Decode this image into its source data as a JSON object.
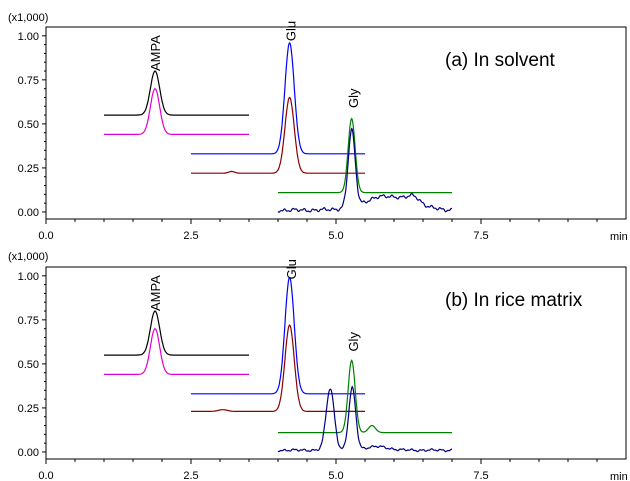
{
  "chart_data": [
    {
      "type": "line",
      "title": "(a) In solvent",
      "multiplier": "(x1,000)",
      "xunit": "min",
      "xlim": [
        0,
        10
      ],
      "ylim": [
        -0.04,
        1.05
      ],
      "xticks": [
        0.0,
        2.5,
        5.0,
        7.5
      ],
      "xtick_labels": [
        "0.0",
        "2.5",
        "5.0",
        "7.5"
      ],
      "yticks": [
        0.0,
        0.25,
        0.5,
        0.75,
        1.0
      ],
      "ytick_labels": [
        "0.00",
        "0.25",
        "0.50",
        "0.75",
        "1.00"
      ],
      "peak_labels": [
        {
          "text": "AMPA",
          "x": 1.88,
          "y": 0.8
        },
        {
          "text": "Glu",
          "x": 4.22,
          "y": 0.97
        },
        {
          "text": "Gly",
          "x": 5.29,
          "y": 0.59
        }
      ],
      "series": [
        {
          "color": "#000000",
          "baseline": 0.55,
          "x_range": [
            1.0,
            3.5
          ],
          "peaks": [
            {
              "x": 1.88,
              "height": 0.25,
              "width": 0.08
            }
          ],
          "noise": 0.0
        },
        {
          "color": "#e000d0",
          "baseline": 0.44,
          "x_range": [
            1.0,
            3.5
          ],
          "peaks": [
            {
              "x": 1.88,
              "height": 0.26,
              "width": 0.08
            }
          ],
          "noise": 0.0
        },
        {
          "color": "#0000ff",
          "baseline": 0.33,
          "x_range": [
            2.5,
            5.5
          ],
          "peaks": [
            {
              "x": 4.2,
              "height": 0.63,
              "width": 0.08
            }
          ],
          "noise": 0.0
        },
        {
          "color": "#8b0000",
          "baseline": 0.22,
          "x_range": [
            2.5,
            5.5
          ],
          "peaks": [
            {
              "x": 4.2,
              "height": 0.43,
              "width": 0.08
            },
            {
              "x": 3.2,
              "height": 0.01,
              "width": 0.05
            }
          ],
          "noise": 0.0
        },
        {
          "color": "#008000",
          "baseline": 0.11,
          "x_range": [
            4.0,
            7.0
          ],
          "peaks": [
            {
              "x": 5.27,
              "height": 0.42,
              "width": 0.06
            }
          ],
          "noise": 0.0
        },
        {
          "color": "#000080",
          "baseline": 0.01,
          "x_range": [
            4.0,
            7.0
          ],
          "peaks": [
            {
              "x": 5.27,
              "height": 0.43,
              "width": 0.06
            },
            {
              "x": 5.9,
              "height": 0.08,
              "width": 0.4
            },
            {
              "x": 6.35,
              "height": 0.04,
              "width": 0.1
            }
          ],
          "noise": 0.012
        }
      ]
    },
    {
      "type": "line",
      "title": "(b) In rice matrix",
      "multiplier": "(x1,000)",
      "xunit": "min",
      "xlim": [
        0,
        10
      ],
      "ylim": [
        -0.04,
        1.05
      ],
      "xticks": [
        0.0,
        2.5,
        5.0,
        7.5
      ],
      "xtick_labels": [
        "0.0",
        "2.5",
        "5.0",
        "7.5"
      ],
      "yticks": [
        0.0,
        0.25,
        0.5,
        0.75,
        1.0
      ],
      "ytick_labels": [
        "0.00",
        "0.25",
        "0.50",
        "0.75",
        "1.00"
      ],
      "peak_labels": [
        {
          "text": "AMPA",
          "x": 1.88,
          "y": 0.8
        },
        {
          "text": "Glu",
          "x": 4.22,
          "y": 0.98
        },
        {
          "text": "Gly",
          "x": 5.29,
          "y": 0.57
        }
      ],
      "series": [
        {
          "color": "#000000",
          "baseline": 0.55,
          "x_range": [
            1.0,
            3.5
          ],
          "peaks": [
            {
              "x": 1.88,
              "height": 0.25,
              "width": 0.08
            }
          ],
          "noise": 0.0
        },
        {
          "color": "#e000d0",
          "baseline": 0.44,
          "x_range": [
            1.0,
            3.5
          ],
          "peaks": [
            {
              "x": 1.88,
              "height": 0.26,
              "width": 0.08
            }
          ],
          "noise": 0.0
        },
        {
          "color": "#0000ff",
          "baseline": 0.33,
          "x_range": [
            2.5,
            5.5
          ],
          "peaks": [
            {
              "x": 4.2,
              "height": 0.66,
              "width": 0.08
            }
          ],
          "noise": 0.0
        },
        {
          "color": "#8b0000",
          "baseline": 0.23,
          "x_range": [
            2.5,
            5.5
          ],
          "peaks": [
            {
              "x": 4.2,
              "height": 0.49,
              "width": 0.08
            },
            {
              "x": 3.05,
              "height": 0.01,
              "width": 0.08
            }
          ],
          "noise": 0.0
        },
        {
          "color": "#008000",
          "baseline": 0.11,
          "x_range": [
            4.0,
            7.0
          ],
          "peaks": [
            {
              "x": 5.27,
              "height": 0.41,
              "width": 0.06
            },
            {
              "x": 5.62,
              "height": 0.04,
              "width": 0.06
            }
          ],
          "noise": 0.0
        },
        {
          "color": "#000080",
          "baseline": 0.01,
          "x_range": [
            4.0,
            7.0
          ],
          "peaks": [
            {
              "x": 4.9,
              "height": 0.35,
              "width": 0.07
            },
            {
              "x": 5.28,
              "height": 0.35,
              "width": 0.06
            },
            {
              "x": 5.7,
              "height": 0.02,
              "width": 0.2
            }
          ],
          "noise": 0.008
        }
      ]
    }
  ]
}
